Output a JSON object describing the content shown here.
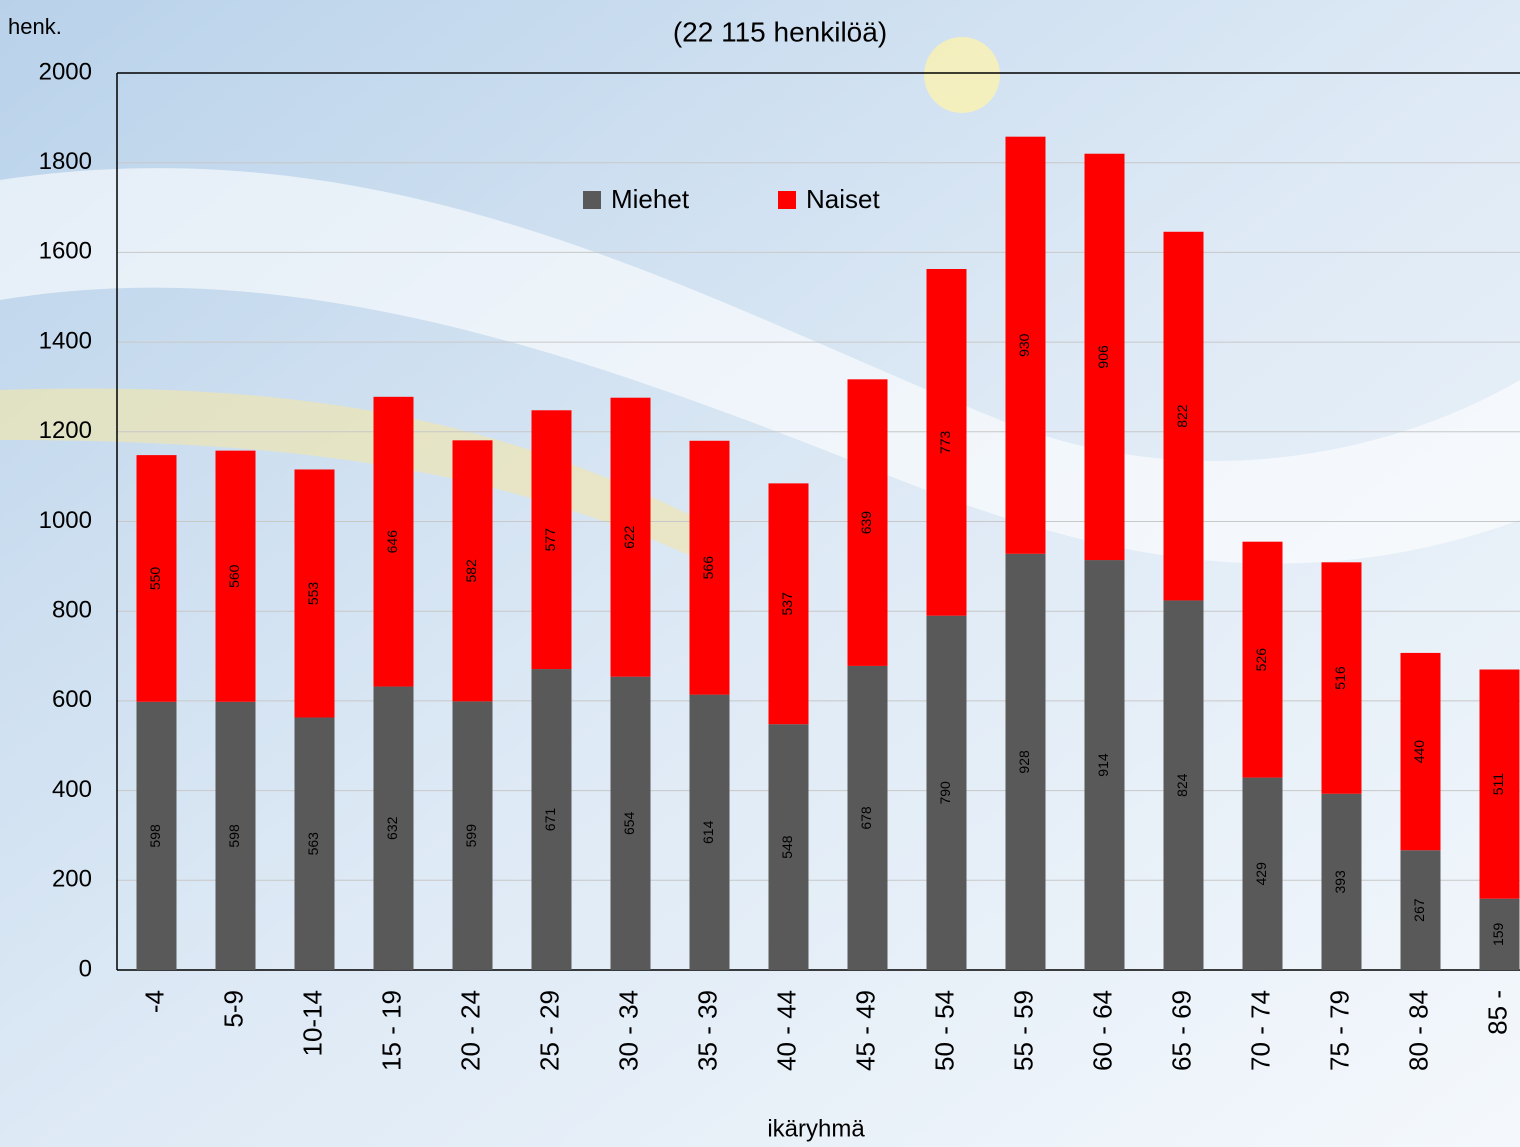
{
  "chart_data": {
    "type": "stacked_bar",
    "subtitle": "(22 115 henkilöä)",
    "y_label": "henk.",
    "x_label": "ikäryhmä",
    "categories": [
      "-4",
      "5-9",
      "10-14",
      "15 - 19",
      "20 - 24",
      "25 - 29",
      "30 - 34",
      "35 - 39",
      "40 - 44",
      "45 - 49",
      "50 - 54",
      "55 - 59",
      "60 - 64",
      "65 - 69",
      "70 - 74",
      "75 - 79",
      "80 - 84",
      "85 -"
    ],
    "series": [
      {
        "name": "Miehet",
        "color": "#595959",
        "values": [
          598,
          598,
          563,
          632,
          599,
          671,
          654,
          614,
          548,
          678,
          790,
          928,
          914,
          824,
          429,
          393,
          267,
          159
        ]
      },
      {
        "name": "Naiset",
        "color": "#ff0000",
        "values": [
          550,
          560,
          553,
          646,
          582,
          577,
          622,
          566,
          537,
          639,
          773,
          930,
          906,
          822,
          526,
          516,
          440,
          511
        ]
      }
    ],
    "ylim": [
      0,
      2000
    ],
    "yticks": [
      0,
      200,
      400,
      600,
      800,
      1000,
      1200,
      1400,
      1600,
      1800,
      2000
    ],
    "grid": true
  }
}
